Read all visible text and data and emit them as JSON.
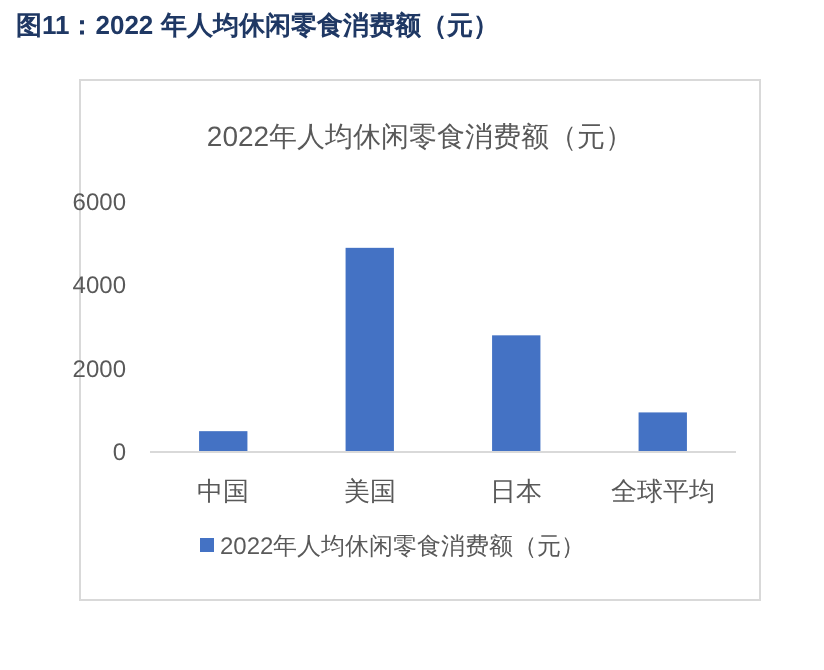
{
  "chart_data": {
    "type": "bar",
    "title": "图11：2022 年人均休闲零食消费额（元）",
    "subtitle": "2022年人均休闲零食消费额（元）",
    "categories": [
      "中国",
      "美国",
      "日本",
      "全球平均"
    ],
    "series": [
      {
        "name": "2022年人均休闲零食消费额（元）",
        "color": "#4472c4",
        "values": [
          500,
          4900,
          2800,
          950
        ]
      }
    ],
    "ylim": [
      0,
      6000
    ],
    "yticks": [
      0,
      2000,
      4000,
      6000
    ],
    "grid": false,
    "legend": "bottom"
  }
}
